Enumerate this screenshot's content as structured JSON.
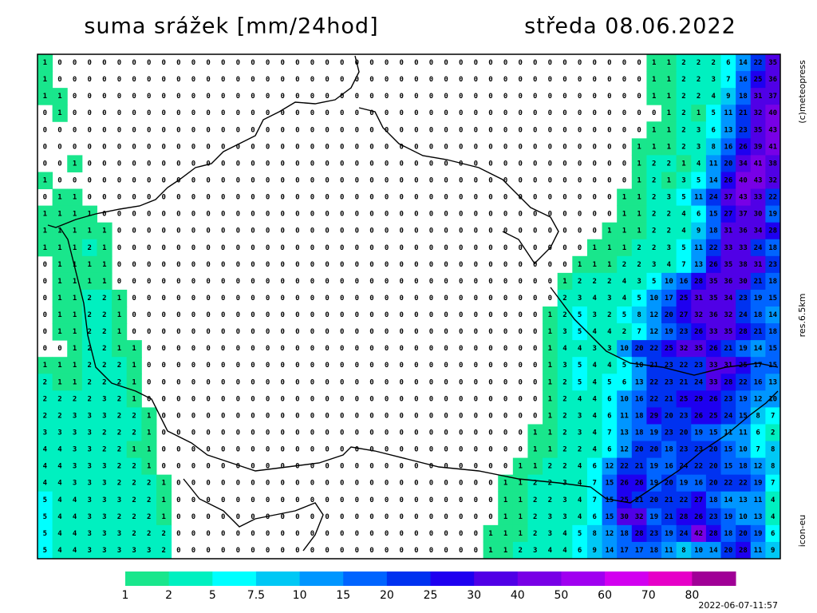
{
  "header": {
    "title": "suma srážek [mm/24hod]",
    "date": "středa 08.06.2022"
  },
  "credits": {
    "copyright": "(c)meteopress",
    "resolution": "res.6.5km",
    "model": "icon-eu",
    "timestamp": "2022-06-07-11:57"
  },
  "legend": {
    "thresholds": [
      {
        "value": 1,
        "color": "#19e68c"
      },
      {
        "value": 2,
        "color": "#00f0c0"
      },
      {
        "value": 5,
        "color": "#00ffff"
      },
      {
        "value": 7.5,
        "color": "#00c8f5"
      },
      {
        "value": 10,
        "color": "#0096ff"
      },
      {
        "value": 15,
        "color": "#0064ff"
      },
      {
        "value": 20,
        "color": "#0032f0"
      },
      {
        "value": 25,
        "color": "#1e00f0"
      },
      {
        "value": 30,
        "color": "#5000e6"
      },
      {
        "value": 40,
        "color": "#7800e6"
      },
      {
        "value": 50,
        "color": "#a000f0"
      },
      {
        "value": 60,
        "color": "#d200f0"
      },
      {
        "value": 70,
        "color": "#e600c8"
      },
      {
        "value": 80,
        "color": "#a00096"
      }
    ]
  },
  "grid": {
    "rows": [
      [
        1,
        0,
        0,
        0,
        0,
        0,
        0,
        0,
        0,
        0,
        0,
        0,
        0,
        0,
        0,
        0,
        0,
        0,
        0,
        0,
        0,
        0,
        0,
        0,
        0,
        0,
        0,
        0,
        0,
        0,
        0,
        0,
        0,
        0,
        0,
        0,
        0,
        0,
        0,
        0,
        0,
        1,
        1,
        2,
        2,
        2,
        6,
        14,
        22,
        35
      ],
      [
        1,
        0,
        0,
        0,
        0,
        0,
        0,
        0,
        0,
        0,
        0,
        0,
        0,
        0,
        0,
        0,
        0,
        0,
        0,
        0,
        0,
        0,
        0,
        0,
        0,
        0,
        0,
        0,
        0,
        0,
        0,
        0,
        0,
        0,
        0,
        0,
        0,
        0,
        0,
        0,
        0,
        1,
        1,
        2,
        2,
        3,
        7,
        16,
        25,
        36
      ],
      [
        1,
        1,
        0,
        0,
        0,
        0,
        0,
        0,
        0,
        0,
        0,
        0,
        0,
        0,
        0,
        0,
        0,
        0,
        0,
        0,
        0,
        0,
        0,
        0,
        0,
        0,
        0,
        0,
        0,
        0,
        0,
        0,
        0,
        0,
        0,
        0,
        0,
        0,
        0,
        0,
        0,
        1,
        1,
        2,
        2,
        4,
        9,
        18,
        31,
        37
      ],
      [
        0,
        1,
        0,
        0,
        0,
        0,
        0,
        0,
        0,
        0,
        0,
        0,
        0,
        0,
        0,
        0,
        0,
        0,
        0,
        0,
        0,
        0,
        0,
        0,
        0,
        0,
        0,
        0,
        0,
        0,
        0,
        0,
        0,
        0,
        0,
        0,
        0,
        0,
        0,
        0,
        0,
        0,
        1,
        2,
        1,
        5,
        11,
        21,
        32,
        40
      ],
      [
        0,
        0,
        0,
        0,
        0,
        0,
        0,
        0,
        0,
        0,
        0,
        0,
        0,
        0,
        0,
        0,
        0,
        0,
        0,
        0,
        0,
        0,
        0,
        0,
        0,
        0,
        0,
        0,
        0,
        0,
        0,
        0,
        0,
        0,
        0,
        0,
        0,
        0,
        0,
        0,
        0,
        1,
        1,
        2,
        3,
        6,
        13,
        23,
        35,
        43
      ],
      [
        0,
        0,
        0,
        0,
        0,
        0,
        0,
        0,
        0,
        0,
        0,
        0,
        0,
        0,
        0,
        0,
        0,
        0,
        0,
        0,
        0,
        0,
        0,
        0,
        0,
        0,
        0,
        0,
        0,
        0,
        0,
        0,
        0,
        0,
        0,
        0,
        0,
        0,
        0,
        0,
        1,
        1,
        1,
        2,
        3,
        8,
        16,
        26,
        39,
        41
      ],
      [
        0,
        0,
        1,
        0,
        0,
        0,
        0,
        0,
        0,
        0,
        0,
        0,
        0,
        0,
        0,
        0,
        0,
        0,
        0,
        0,
        0,
        0,
        0,
        0,
        0,
        0,
        0,
        0,
        0,
        0,
        0,
        0,
        0,
        0,
        0,
        0,
        0,
        0,
        0,
        0,
        1,
        2,
        2,
        1,
        4,
        11,
        20,
        34,
        41,
        38
      ],
      [
        1,
        0,
        0,
        0,
        0,
        0,
        0,
        0,
        0,
        0,
        0,
        0,
        0,
        0,
        0,
        0,
        0,
        0,
        0,
        0,
        0,
        0,
        0,
        0,
        0,
        0,
        0,
        0,
        0,
        0,
        0,
        0,
        0,
        0,
        0,
        0,
        0,
        0,
        0,
        0,
        1,
        2,
        1,
        3,
        5,
        14,
        26,
        40,
        43,
        32
      ],
      [
        0,
        1,
        1,
        0,
        0,
        0,
        0,
        0,
        0,
        0,
        0,
        0,
        0,
        0,
        0,
        0,
        0,
        0,
        0,
        0,
        0,
        0,
        0,
        0,
        0,
        0,
        0,
        0,
        0,
        0,
        0,
        0,
        0,
        0,
        0,
        0,
        0,
        0,
        0,
        1,
        1,
        2,
        3,
        5,
        11,
        24,
        37,
        43,
        33,
        22
      ],
      [
        1,
        1,
        1,
        1,
        0,
        0,
        0,
        0,
        0,
        0,
        0,
        0,
        0,
        0,
        0,
        0,
        0,
        0,
        0,
        0,
        0,
        0,
        0,
        0,
        0,
        0,
        0,
        0,
        0,
        0,
        0,
        0,
        0,
        0,
        0,
        0,
        0,
        0,
        0,
        1,
        1,
        2,
        2,
        4,
        6,
        15,
        27,
        37,
        30,
        19
      ],
      [
        1,
        1,
        1,
        1,
        1,
        0,
        0,
        0,
        0,
        0,
        0,
        0,
        0,
        0,
        0,
        0,
        0,
        0,
        0,
        0,
        0,
        0,
        0,
        0,
        0,
        0,
        0,
        0,
        0,
        0,
        0,
        0,
        0,
        0,
        0,
        0,
        0,
        0,
        1,
        1,
        1,
        2,
        2,
        4,
        9,
        18,
        31,
        36,
        34,
        28
      ],
      [
        1,
        1,
        1,
        2,
        1,
        0,
        0,
        0,
        0,
        0,
        0,
        0,
        0,
        0,
        0,
        0,
        0,
        0,
        0,
        0,
        0,
        0,
        0,
        0,
        0,
        0,
        0,
        0,
        0,
        0,
        0,
        0,
        0,
        0,
        0,
        0,
        0,
        1,
        1,
        1,
        2,
        2,
        3,
        5,
        11,
        22,
        33,
        33,
        24,
        18
      ],
      [
        0,
        1,
        1,
        1,
        1,
        0,
        0,
        0,
        0,
        0,
        0,
        0,
        0,
        0,
        0,
        0,
        0,
        0,
        0,
        0,
        0,
        0,
        0,
        0,
        0,
        0,
        0,
        0,
        0,
        0,
        0,
        0,
        0,
        0,
        0,
        0,
        1,
        1,
        1,
        2,
        2,
        3,
        4,
        7,
        13,
        26,
        35,
        38,
        31,
        23
      ],
      [
        0,
        1,
        1,
        1,
        1,
        0,
        0,
        0,
        0,
        0,
        0,
        0,
        0,
        0,
        0,
        0,
        0,
        0,
        0,
        0,
        0,
        0,
        0,
        0,
        0,
        0,
        0,
        0,
        0,
        0,
        0,
        0,
        0,
        0,
        0,
        1,
        2,
        2,
        2,
        4,
        3,
        5,
        10,
        16,
        28,
        35,
        36,
        30,
        21,
        18
      ],
      [
        0,
        1,
        1,
        2,
        2,
        1,
        0,
        0,
        0,
        0,
        0,
        0,
        0,
        0,
        0,
        0,
        0,
        0,
        0,
        0,
        0,
        0,
        0,
        0,
        0,
        0,
        0,
        0,
        0,
        0,
        0,
        0,
        0,
        0,
        0,
        2,
        3,
        4,
        3,
        4,
        5,
        10,
        17,
        25,
        31,
        35,
        34,
        23,
        19,
        15
      ],
      [
        0,
        1,
        1,
        2,
        2,
        1,
        0,
        0,
        0,
        0,
        0,
        0,
        0,
        0,
        0,
        0,
        0,
        0,
        0,
        0,
        0,
        0,
        0,
        0,
        0,
        0,
        0,
        0,
        0,
        0,
        0,
        0,
        0,
        0,
        1,
        2,
        5,
        3,
        2,
        5,
        8,
        12,
        20,
        27,
        32,
        36,
        32,
        24,
        18,
        14
      ],
      [
        0,
        1,
        1,
        2,
        2,
        1,
        0,
        0,
        0,
        0,
        0,
        0,
        0,
        0,
        0,
        0,
        0,
        0,
        0,
        0,
        0,
        0,
        0,
        0,
        0,
        0,
        0,
        0,
        0,
        0,
        0,
        0,
        0,
        0,
        1,
        3,
        5,
        4,
        4,
        2,
        7,
        12,
        19,
        23,
        26,
        33,
        35,
        28,
        21,
        18
      ],
      [
        0,
        0,
        1,
        2,
        2,
        1,
        1,
        0,
        0,
        0,
        0,
        0,
        0,
        0,
        0,
        0,
        0,
        0,
        0,
        0,
        0,
        0,
        0,
        0,
        0,
        0,
        0,
        0,
        0,
        0,
        0,
        0,
        0,
        0,
        1,
        4,
        4,
        3,
        3,
        10,
        20,
        22,
        25,
        32,
        35,
        26,
        21,
        19,
        14,
        15
      ],
      [
        1,
        1,
        1,
        2,
        2,
        2,
        1,
        0,
        0,
        0,
        0,
        0,
        0,
        0,
        0,
        0,
        0,
        0,
        0,
        0,
        0,
        0,
        0,
        0,
        0,
        0,
        0,
        0,
        0,
        0,
        0,
        0,
        0,
        0,
        1,
        3,
        5,
        4,
        4,
        5,
        10,
        21,
        23,
        22,
        23,
        33,
        31,
        25,
        17,
        15
      ],
      [
        2,
        1,
        1,
        2,
        2,
        2,
        1,
        0,
        0,
        0,
        0,
        0,
        0,
        0,
        0,
        0,
        0,
        0,
        0,
        0,
        0,
        0,
        0,
        0,
        0,
        0,
        0,
        0,
        0,
        0,
        0,
        0,
        0,
        0,
        1,
        2,
        5,
        4,
        5,
        6,
        13,
        22,
        23,
        21,
        24,
        33,
        28,
        22,
        16,
        13
      ],
      [
        2,
        2,
        2,
        2,
        3,
        2,
        1,
        0,
        0,
        0,
        0,
        0,
        0,
        0,
        0,
        0,
        0,
        0,
        0,
        0,
        0,
        0,
        0,
        0,
        0,
        0,
        0,
        0,
        0,
        0,
        0,
        0,
        0,
        0,
        1,
        2,
        4,
        4,
        6,
        10,
        16,
        22,
        21,
        25,
        29,
        26,
        23,
        19,
        12,
        10
      ],
      [
        2,
        2,
        3,
        3,
        3,
        2,
        2,
        1,
        0,
        0,
        0,
        0,
        0,
        0,
        0,
        0,
        0,
        0,
        0,
        0,
        0,
        0,
        0,
        0,
        0,
        0,
        0,
        0,
        0,
        0,
        0,
        0,
        0,
        0,
        1,
        2,
        3,
        4,
        6,
        11,
        18,
        29,
        20,
        23,
        26,
        25,
        24,
        15,
        8,
        7
      ],
      [
        3,
        3,
        3,
        3,
        2,
        2,
        2,
        1,
        0,
        0,
        0,
        0,
        0,
        0,
        0,
        0,
        0,
        0,
        0,
        0,
        0,
        0,
        0,
        0,
        0,
        0,
        0,
        0,
        0,
        0,
        0,
        0,
        0,
        1,
        1,
        2,
        3,
        4,
        7,
        13,
        18,
        19,
        23,
        20,
        19,
        15,
        11,
        11,
        6,
        2
      ],
      [
        4,
        4,
        3,
        3,
        2,
        2,
        1,
        1,
        0,
        0,
        0,
        0,
        0,
        0,
        0,
        0,
        0,
        0,
        0,
        0,
        0,
        0,
        0,
        0,
        0,
        0,
        0,
        0,
        0,
        0,
        0,
        0,
        0,
        1,
        1,
        2,
        2,
        4,
        6,
        12,
        20,
        20,
        18,
        23,
        23,
        20,
        15,
        10,
        7,
        8
      ],
      [
        4,
        4,
        3,
        3,
        3,
        2,
        2,
        1,
        0,
        0,
        0,
        0,
        0,
        0,
        0,
        0,
        0,
        0,
        0,
        0,
        0,
        0,
        0,
        0,
        0,
        0,
        0,
        0,
        0,
        0,
        0,
        0,
        1,
        1,
        2,
        2,
        4,
        6,
        12,
        22,
        21,
        19,
        16,
        24,
        22,
        20,
        15,
        18,
        12,
        8
      ],
      [
        4,
        4,
        3,
        3,
        3,
        2,
        2,
        2,
        1,
        0,
        0,
        0,
        0,
        0,
        0,
        0,
        0,
        0,
        0,
        0,
        0,
        0,
        0,
        0,
        0,
        0,
        0,
        0,
        0,
        0,
        0,
        1,
        1,
        2,
        2,
        3,
        4,
        7,
        15,
        26,
        26,
        19,
        20,
        19,
        16,
        20,
        22,
        22,
        19,
        7
      ],
      [
        5,
        4,
        4,
        3,
        3,
        3,
        2,
        2,
        1,
        0,
        0,
        0,
        0,
        0,
        0,
        0,
        0,
        0,
        0,
        0,
        0,
        0,
        0,
        0,
        0,
        0,
        0,
        0,
        0,
        0,
        0,
        1,
        1,
        2,
        2,
        3,
        4,
        7,
        15,
        25,
        21,
        20,
        21,
        22,
        27,
        18,
        14,
        13,
        11,
        4
      ],
      [
        5,
        4,
        4,
        3,
        3,
        2,
        2,
        2,
        1,
        0,
        0,
        0,
        0,
        0,
        0,
        0,
        0,
        0,
        0,
        0,
        0,
        0,
        0,
        0,
        0,
        0,
        0,
        0,
        0,
        0,
        0,
        1,
        1,
        2,
        3,
        3,
        4,
        6,
        15,
        30,
        32,
        19,
        21,
        28,
        26,
        23,
        19,
        10,
        13,
        4
      ],
      [
        5,
        4,
        4,
        3,
        3,
        3,
        2,
        2,
        2,
        0,
        0,
        0,
        0,
        0,
        0,
        0,
        0,
        0,
        0,
        0,
        0,
        0,
        0,
        0,
        0,
        0,
        0,
        0,
        0,
        0,
        1,
        1,
        1,
        2,
        3,
        4,
        5,
        8,
        12,
        18,
        28,
        23,
        19,
        24,
        42,
        28,
        18,
        20,
        19,
        6
      ],
      [
        5,
        4,
        4,
        3,
        3,
        3,
        3,
        3,
        2,
        0,
        0,
        0,
        0,
        0,
        0,
        0,
        0,
        0,
        0,
        0,
        0,
        0,
        0,
        0,
        0,
        0,
        0,
        0,
        0,
        0,
        1,
        1,
        2,
        3,
        4,
        4,
        6,
        9,
        14,
        17,
        17,
        18,
        11,
        8,
        10,
        14,
        20,
        28,
        11,
        9
      ]
    ]
  }
}
